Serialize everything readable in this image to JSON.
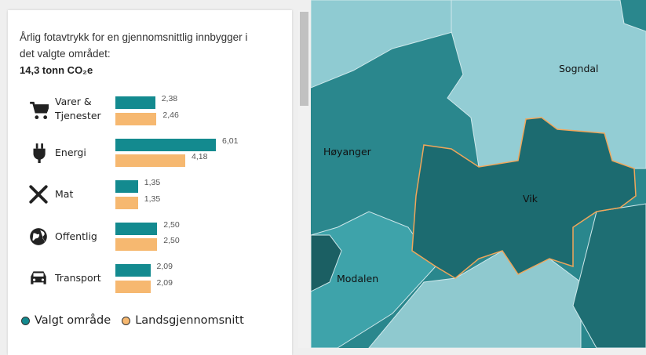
{
  "panel": {
    "title": "Årlig fotavtrykk for en gjennomsnittlig innbygger i det valgte området:",
    "total": "14,3 tonn CO₂e",
    "series": [
      {
        "name": "Valgt område",
        "color": "#138a8f"
      },
      {
        "name": "Landsgjennomsnitt",
        "color": "#f6b870"
      }
    ],
    "categories": [
      {
        "name": "Varer & Tjenester",
        "values": [
          2.38,
          2.46
        ],
        "value_labels": [
          "2,38",
          "2,46"
        ]
      },
      {
        "name": "Energi",
        "values": [
          6.01,
          4.18
        ],
        "value_labels": [
          "6,01",
          "4,18"
        ]
      },
      {
        "name": "Mat",
        "values": [
          1.35,
          1.35
        ],
        "value_labels": [
          "1,35",
          "1,35"
        ]
      },
      {
        "name": "Offentlig",
        "values": [
          2.5,
          2.5
        ],
        "value_labels": [
          "2,50",
          "2,50"
        ]
      },
      {
        "name": "Transport",
        "values": [
          2.09,
          2.09
        ],
        "value_labels": [
          "2,09",
          "2,09"
        ]
      }
    ]
  },
  "map": {
    "labels": [
      "Sogndal",
      "Høyanger",
      "Vik",
      "Modalen"
    ]
  }
}
